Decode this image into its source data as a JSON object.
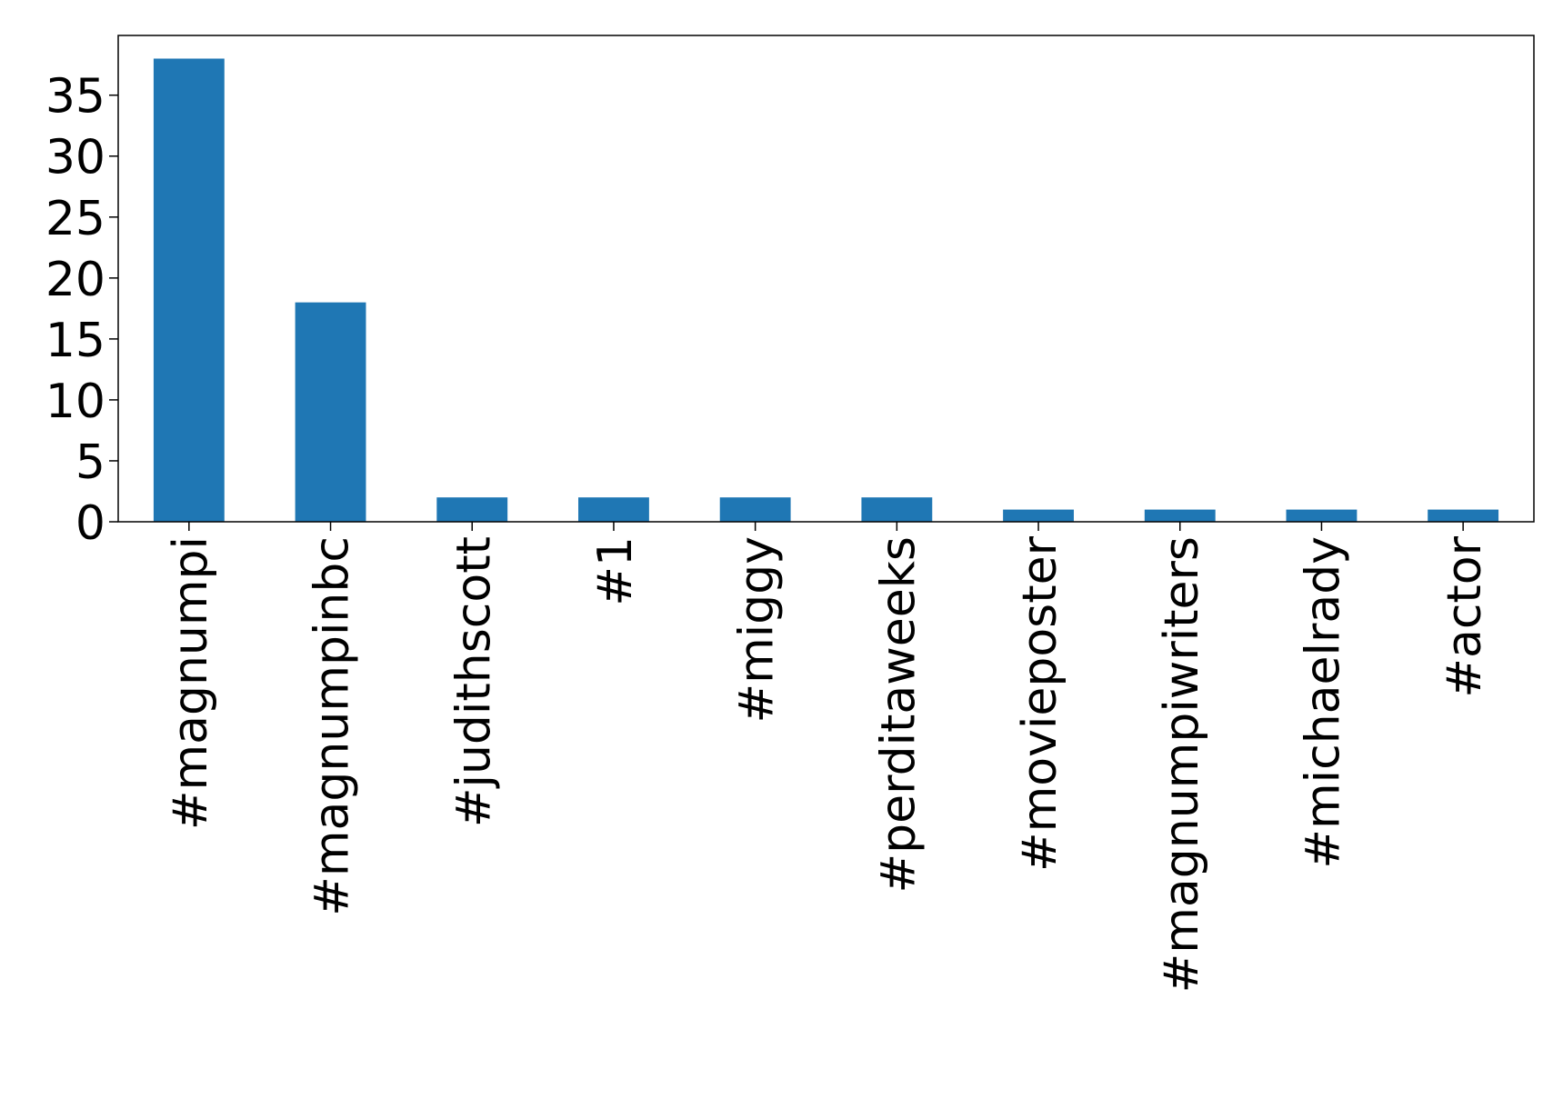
{
  "chart_data": {
    "type": "bar",
    "categories": [
      "#magnumpi",
      "#magnumpinbc",
      "#judithscott",
      "#1",
      "#miggy",
      "#perditaweeks",
      "#movieposter",
      "#magnumpiwriters",
      "#michaelrady",
      "#actor"
    ],
    "values": [
      38,
      18,
      2,
      2,
      2,
      2,
      1,
      1,
      1,
      1
    ],
    "color": "#1f77b4",
    "ylim": [
      0,
      39.9
    ],
    "yticks": [
      0,
      5,
      10,
      15,
      20,
      25,
      30,
      35
    ],
    "grid": false
  }
}
